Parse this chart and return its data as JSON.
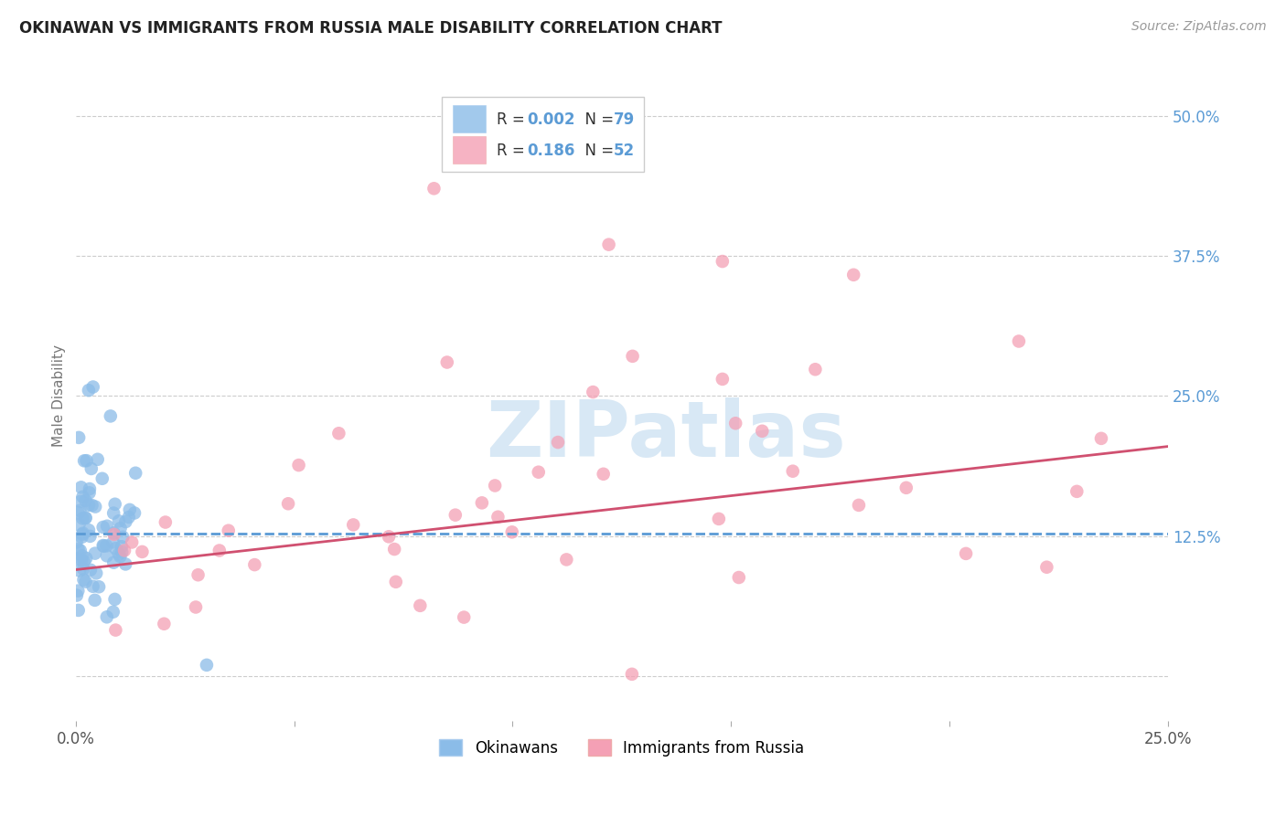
{
  "title": "OKINAWAN VS IMMIGRANTS FROM RUSSIA MALE DISABILITY CORRELATION CHART",
  "source": "Source: ZipAtlas.com",
  "ylabel": "Male Disability",
  "xlim": [
    0.0,
    0.25
  ],
  "ylim": [
    -0.04,
    0.54
  ],
  "yticks": [
    0.0,
    0.125,
    0.25,
    0.375,
    0.5
  ],
  "ytick_labels": [
    "",
    "12.5%",
    "25.0%",
    "37.5%",
    "50.0%"
  ],
  "xticks": [
    0.0,
    0.05,
    0.1,
    0.15,
    0.2,
    0.25
  ],
  "xtick_labels": [
    "0.0%",
    "",
    "",
    "",
    "",
    "25.0%"
  ],
  "okinawan_color": "#8bbce8",
  "russia_color": "#f4a0b5",
  "trendline_okinawan_color": "#5b9bd5",
  "trendline_russia_color": "#d05070",
  "R_okinawan": 0.002,
  "N_okinawan": 79,
  "R_russia": 0.186,
  "N_russia": 52,
  "ok_trendline_y0": 0.127,
  "ok_trendline_y1": 0.127,
  "ru_trendline_y0": 0.095,
  "ru_trendline_y1": 0.205,
  "watermark_text": "ZIPatlas",
  "watermark_color": "#d8e8f5",
  "background_color": "#ffffff",
  "grid_color": "#cccccc",
  "legend_box_color": "#ffffff",
  "legend_border_color": "#cccccc",
  "legend_R_color": "#5b9bd5",
  "legend_N_color": "#5b9bd5",
  "tick_label_color": "#5b9bd5",
  "ylabel_color": "#777777",
  "title_color": "#222222",
  "source_color": "#999999"
}
